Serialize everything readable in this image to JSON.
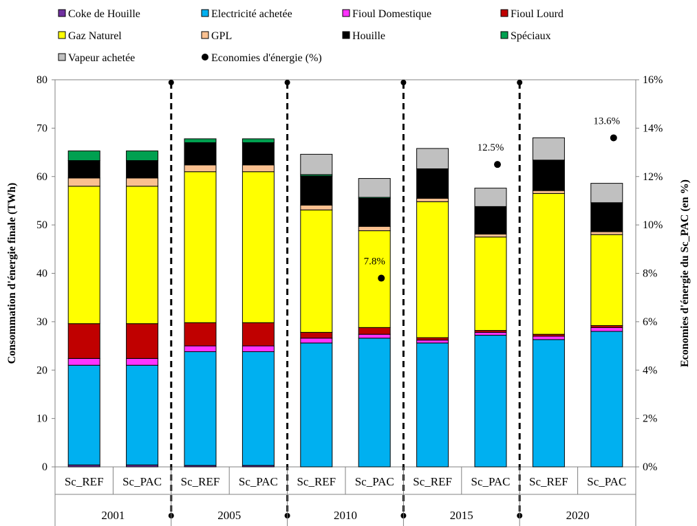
{
  "chart_data": {
    "type": "bar",
    "stacked": true,
    "groups": [
      "2001",
      "2005",
      "2010",
      "2015",
      "2020"
    ],
    "scenarios": [
      "Sc_REF",
      "Sc_PAC"
    ],
    "categories": [
      "Sc_REF",
      "Sc_PAC",
      "Sc_REF",
      "Sc_PAC",
      "Sc_REF",
      "Sc_PAC",
      "Sc_REF",
      "Sc_PAC",
      "Sc_REF",
      "Sc_PAC"
    ],
    "ylabel": "Consommation d'énergie finale (TWh)",
    "ylabel_right": "Economies d'énergie du Sc_PAC (en %)",
    "ylim": [
      0,
      80
    ],
    "yticks": [
      "0",
      "10",
      "20",
      "30",
      "40",
      "50",
      "60",
      "70",
      "80"
    ],
    "ylim_right": [
      0,
      16
    ],
    "yticks_right": [
      "0%",
      "2%",
      "4%",
      "6%",
      "8%",
      "10%",
      "12%",
      "14%",
      "16%"
    ],
    "legend_position": "top",
    "series": [
      {
        "name": "Coke de Houille",
        "color": "#7030A0",
        "values": [
          0.4,
          0.4,
          0.3,
          0.3,
          0,
          0,
          0,
          0,
          0,
          0
        ]
      },
      {
        "name": "Electricité achetée",
        "color": "#00B0F0",
        "values": [
          20.6,
          20.6,
          23.5,
          23.5,
          25.6,
          26.6,
          25.6,
          27.2,
          26.3,
          28.0
        ]
      },
      {
        "name": "Fioul Domestique",
        "color": "#FF33FF",
        "values": [
          1.4,
          1.4,
          1.2,
          1.2,
          1.0,
          0.8,
          0.6,
          0.6,
          0.7,
          0.8
        ]
      },
      {
        "name": "Fioul Lourd",
        "color": "#C00000",
        "values": [
          7.2,
          7.2,
          4.8,
          4.8,
          1.2,
          1.4,
          0.5,
          0.4,
          0.4,
          0.4
        ]
      },
      {
        "name": "Gaz Naturel",
        "color": "#FFFF00",
        "values": [
          28.4,
          28.4,
          31.2,
          31.2,
          25.3,
          20.0,
          28.1,
          19.3,
          29.1,
          18.8
        ]
      },
      {
        "name": "GPL",
        "color": "#FAC090",
        "values": [
          1.7,
          1.7,
          1.4,
          1.4,
          1.0,
          0.9,
          0.7,
          0.6,
          0.6,
          0.6
        ]
      },
      {
        "name": "Houille",
        "color": "#000000",
        "values": [
          3.6,
          3.6,
          4.6,
          4.6,
          6.0,
          5.8,
          6.1,
          5.7,
          6.3,
          6.0
        ]
      },
      {
        "name": "Spéciaux",
        "color": "#00A050",
        "values": [
          2.0,
          2.0,
          0.8,
          0.8,
          0.3,
          0.2,
          0,
          0,
          0,
          0
        ]
      },
      {
        "name": "Vapeur achetée",
        "color": "#C0C0C0",
        "values": [
          0,
          0,
          0,
          0,
          4.2,
          3.9,
          4.2,
          3.8,
          4.6,
          4.0
        ]
      }
    ],
    "savings": {
      "name": "Economies d'énergie (%)",
      "color": "#000000",
      "points": [
        {
          "category_index": 5,
          "value": 7.8,
          "label": "7.8%"
        },
        {
          "category_index": 7,
          "value": 12.5,
          "label": "12.5%"
        },
        {
          "category_index": 9,
          "value": 13.6,
          "label": "13.6%"
        }
      ]
    }
  }
}
